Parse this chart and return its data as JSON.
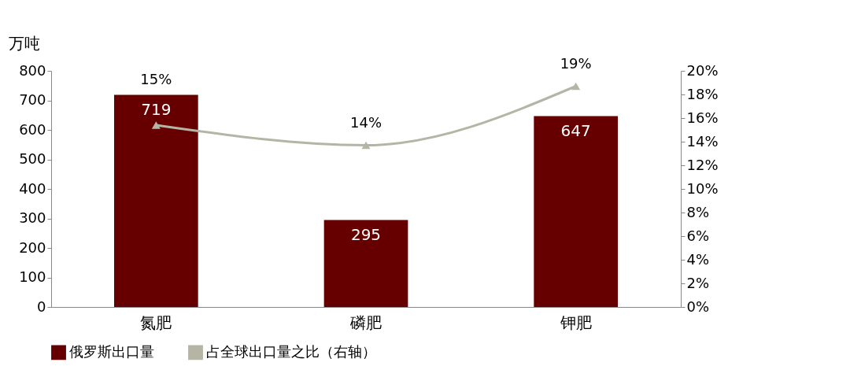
{
  "chart_data": {
    "type": "bar",
    "ylabel": "万吨",
    "categories": [
      "氮肥",
      "磷肥",
      "钾肥"
    ],
    "series": [
      {
        "name": "俄罗斯出口量",
        "color": "#660000",
        "values": [
          719,
          295,
          647
        ],
        "value_labels": [
          "719",
          "295",
          "647"
        ]
      },
      {
        "name": "占全球出口量之比（右轴）",
        "type": "line",
        "axis": "y2",
        "color": "#b5b5a5",
        "values": [
          15.4,
          13.7,
          18.7
        ],
        "value_labels": [
          "15%",
          "14%",
          "19%"
        ],
        "marker": "triangle"
      }
    ],
    "ylim": [
      0,
      800
    ],
    "yticks": [
      0,
      100,
      200,
      300,
      400,
      500,
      600,
      700,
      800
    ],
    "y2lim": [
      0,
      20
    ],
    "y2ticks": [
      {
        "value": 0,
        "label": "0%"
      },
      {
        "value": 2,
        "label": "2%"
      },
      {
        "value": 4,
        "label": "4%"
      },
      {
        "value": 6,
        "label": "6%"
      },
      {
        "value": 8,
        "label": "8%"
      },
      {
        "value": 10,
        "label": "10%"
      },
      {
        "value": 12,
        "label": "12%"
      },
      {
        "value": 14,
        "label": "14%"
      },
      {
        "value": 16,
        "label": "16%"
      },
      {
        "value": 18,
        "label": "18%"
      },
      {
        "value": 20,
        "label": "20%"
      }
    ],
    "legend": "bottom",
    "grid": false
  }
}
